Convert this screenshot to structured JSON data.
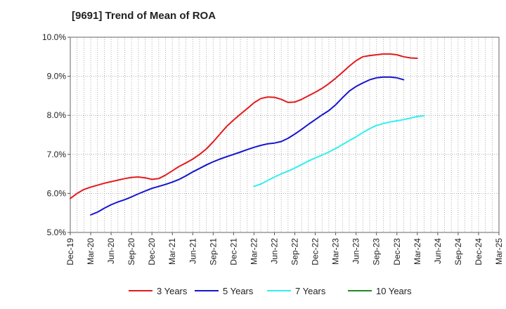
{
  "chart_data": {
    "type": "line",
    "title": "[9691]  Trend of Mean of ROA",
    "xlabel": "",
    "ylabel": "",
    "ylim": [
      5.0,
      10.0
    ],
    "y_ticks": [
      "5.0%",
      "6.0%",
      "7.0%",
      "8.0%",
      "9.0%",
      "10.0%"
    ],
    "x_ticks": [
      "Dec-19",
      "Mar-20",
      "Jun-20",
      "Sep-20",
      "Dec-20",
      "Mar-21",
      "Jun-21",
      "Sep-21",
      "Dec-21",
      "Mar-22",
      "Jun-22",
      "Sep-22",
      "Dec-22",
      "Mar-23",
      "Jun-23",
      "Sep-23",
      "Dec-23",
      "Mar-24",
      "Jun-24",
      "Sep-24",
      "Dec-24",
      "Mar-25"
    ],
    "grid": true,
    "legend_position": "bottom",
    "series": [
      {
        "name": "3 Years",
        "color": "#e31a1c",
        "start_index": 0,
        "values": [
          5.87,
          6.0,
          6.1,
          6.16,
          6.21,
          6.26,
          6.3,
          6.34,
          6.38,
          6.41,
          6.42,
          6.4,
          6.36,
          6.38,
          6.47,
          6.58,
          6.69,
          6.78,
          6.88,
          7.0,
          7.14,
          7.32,
          7.52,
          7.72,
          7.88,
          8.03,
          8.17,
          8.32,
          8.43,
          8.47,
          8.46,
          8.41,
          8.33,
          8.34,
          8.41,
          8.5,
          8.59,
          8.69,
          8.81,
          8.95,
          9.1,
          9.26,
          9.4,
          9.5,
          9.53,
          9.55,
          9.57,
          9.57,
          9.55,
          9.5,
          9.47,
          9.46
        ]
      },
      {
        "name": "5 Years",
        "color": "#1515cc",
        "start_index": 3,
        "values": [
          5.45,
          5.52,
          5.62,
          5.71,
          5.78,
          5.84,
          5.91,
          5.99,
          6.06,
          6.13,
          6.18,
          6.23,
          6.29,
          6.36,
          6.45,
          6.55,
          6.64,
          6.73,
          6.81,
          6.88,
          6.94,
          7.0,
          7.06,
          7.12,
          7.18,
          7.23,
          7.27,
          7.29,
          7.33,
          7.41,
          7.52,
          7.64,
          7.77,
          7.89,
          8.01,
          8.12,
          8.27,
          8.45,
          8.62,
          8.74,
          8.83,
          8.91,
          8.96,
          8.98,
          8.98,
          8.96,
          8.91
        ]
      },
      {
        "name": "7 Years",
        "color": "#33eeee",
        "start_index": 27,
        "values": [
          6.18,
          6.24,
          6.33,
          6.42,
          6.5,
          6.57,
          6.65,
          6.74,
          6.83,
          6.91,
          6.98,
          7.06,
          7.15,
          7.25,
          7.35,
          7.45,
          7.56,
          7.66,
          7.74,
          7.79,
          7.83,
          7.86,
          7.89,
          7.93,
          7.97,
          7.99
        ]
      },
      {
        "name": "10 Years",
        "color": "#1f8a1f",
        "start_index": 0,
        "values": []
      }
    ]
  }
}
